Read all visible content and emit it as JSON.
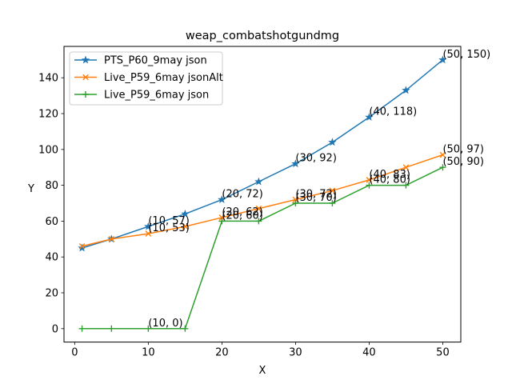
{
  "chart_data": {
    "type": "line",
    "title": "weap_combatshotgundmg",
    "xlabel": "X",
    "ylabel": "Y",
    "xlim": [
      -1.45,
      52.45
    ],
    "ylim": [
      -7.5,
      157.5
    ],
    "xticks": [
      0,
      10,
      20,
      30,
      40,
      50
    ],
    "yticks": [
      0,
      20,
      40,
      60,
      80,
      100,
      120,
      140
    ],
    "grid": false,
    "legend_position": "top-left",
    "series": [
      {
        "name": "PTS_P60_9may json",
        "color": "#1f77b4",
        "marker": "star",
        "x": [
          1,
          5,
          10,
          15,
          20,
          25,
          30,
          35,
          40,
          45,
          50
        ],
        "y": [
          45,
          50,
          57,
          64,
          72,
          82,
          92,
          104,
          118,
          133,
          150
        ]
      },
      {
        "name": "Live_P59_6may jsonAlt",
        "color": "#ff7f0e",
        "marker": "x",
        "x": [
          1,
          5,
          10,
          15,
          20,
          25,
          30,
          35,
          40,
          45,
          50
        ],
        "y": [
          46,
          50,
          53,
          57,
          62,
          67,
          72,
          77,
          83,
          90,
          97
        ]
      },
      {
        "name": "Live_P59_6may json",
        "color": "#2ca02c",
        "marker": "plus",
        "x": [
          1,
          5,
          10,
          15,
          20,
          25,
          30,
          35,
          40,
          45,
          50
        ],
        "y": [
          0,
          0,
          0,
          0,
          60,
          60,
          70,
          70,
          80,
          80,
          90
        ]
      }
    ],
    "annotations": [
      {
        "text": "(10, 57)",
        "x": 10,
        "y": 57
      },
      {
        "text": "(20, 72)",
        "x": 20,
        "y": 72
      },
      {
        "text": "(30, 92)",
        "x": 30,
        "y": 92
      },
      {
        "text": "(40, 118)",
        "x": 40,
        "y": 118
      },
      {
        "text": "(50, 150)",
        "x": 50,
        "y": 150
      },
      {
        "text": "(10, 53)",
        "x": 10,
        "y": 53
      },
      {
        "text": "(20, 62)",
        "x": 20,
        "y": 62
      },
      {
        "text": "(30, 72)",
        "x": 30,
        "y": 72
      },
      {
        "text": "(40, 83)",
        "x": 40,
        "y": 83
      },
      {
        "text": "(50, 97)",
        "x": 50,
        "y": 97
      },
      {
        "text": "(10, 0)",
        "x": 10,
        "y": 0
      },
      {
        "text": "(20, 60)",
        "x": 20,
        "y": 60
      },
      {
        "text": "(30, 70)",
        "x": 30,
        "y": 70
      },
      {
        "text": "(40, 80)",
        "x": 40,
        "y": 80
      },
      {
        "text": "(50, 90)",
        "x": 50,
        "y": 90
      }
    ]
  }
}
